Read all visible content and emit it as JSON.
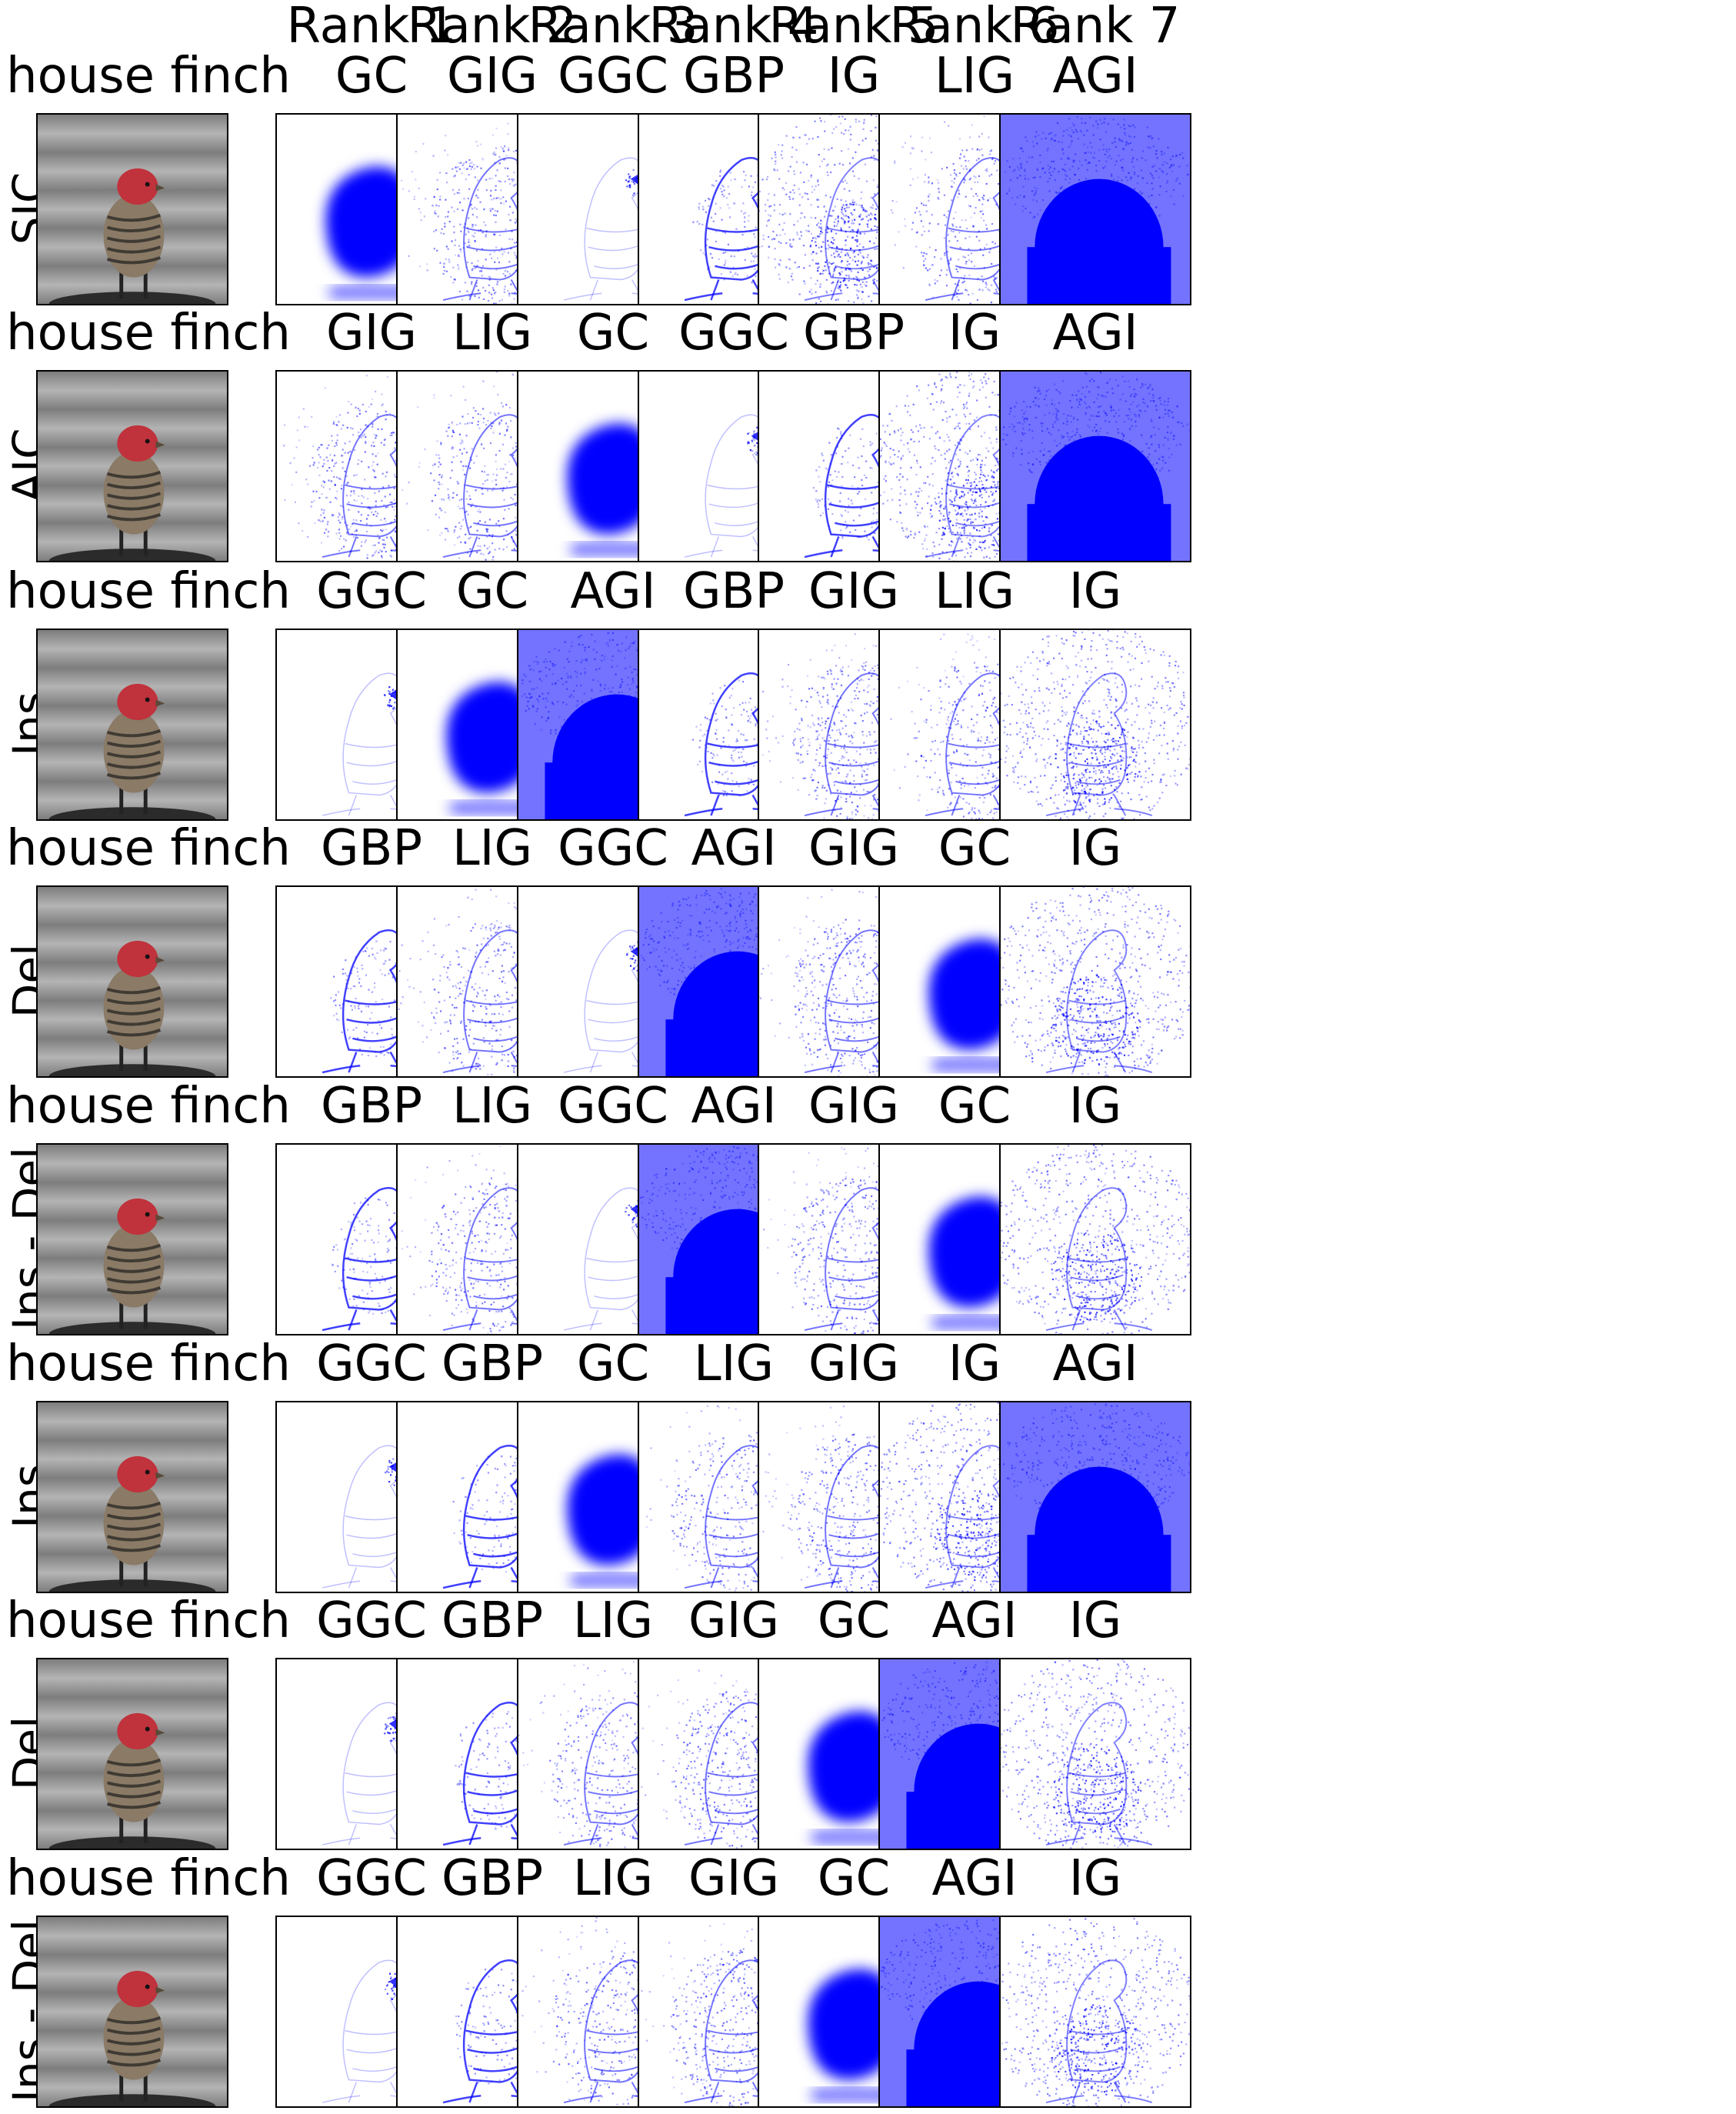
{
  "rank_headers": [
    "Rank 1",
    "Rank 2",
    "Rank 3",
    "Rank 4",
    "Rank 5",
    "Rank 6",
    "Rank 7"
  ],
  "rows": [
    {
      "class_label": "house finch",
      "metric": "SIC",
      "methods": [
        "GC",
        "GIG",
        "GGC",
        "GBP",
        "IG",
        "LIG",
        "AGI"
      ]
    },
    {
      "class_label": "house finch",
      "metric": "AIC",
      "methods": [
        "GIG",
        "LIG",
        "GC",
        "GGC",
        "GBP",
        "IG",
        "AGI"
      ]
    },
    {
      "class_label": "house finch",
      "metric": "Ins",
      "methods": [
        "GGC",
        "GC",
        "AGI",
        "GBP",
        "GIG",
        "LIG",
        "IG"
      ]
    },
    {
      "class_label": "house finch",
      "metric": "Del",
      "methods": [
        "GBP",
        "LIG",
        "GGC",
        "AGI",
        "GIG",
        "GC",
        "IG"
      ]
    },
    {
      "class_label": "house finch",
      "metric": "Ins - Del",
      "methods": [
        "GBP",
        "LIG",
        "GGC",
        "AGI",
        "GIG",
        "GC",
        "IG"
      ]
    },
    {
      "class_label": "house finch",
      "metric": "Ins",
      "methods": [
        "GGC",
        "GBP",
        "GC",
        "LIG",
        "GIG",
        "IG",
        "AGI"
      ]
    },
    {
      "class_label": "house finch",
      "metric": "Del",
      "methods": [
        "GGC",
        "GBP",
        "LIG",
        "GIG",
        "GC",
        "AGI",
        "IG"
      ]
    },
    {
      "class_label": "house finch",
      "metric": "Ins - Del",
      "methods": [
        "GGC",
        "GBP",
        "LIG",
        "GIG",
        "GC",
        "AGI",
        "IG"
      ]
    }
  ],
  "colors": {
    "saliency": "#0000ff",
    "background_gray": "#9a9a9a",
    "finch_head": "#c0323c"
  }
}
